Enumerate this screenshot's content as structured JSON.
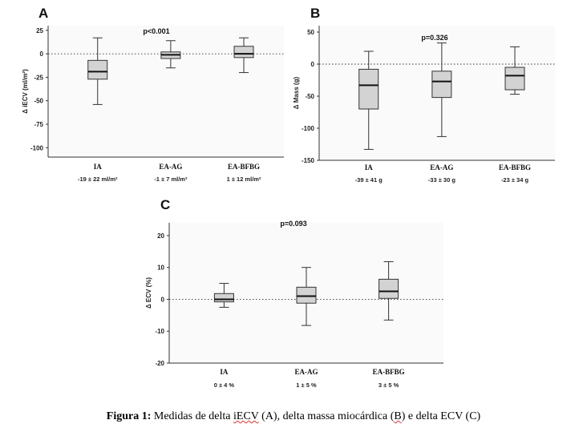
{
  "chart_data": [
    {
      "type": "box",
      "letter": "A",
      "p_value": "p<0.001",
      "ylabel": "Δ iECV (ml/m²)",
      "ylim": [
        -110,
        30
      ],
      "yticks": [
        25,
        0,
        -25,
        -50,
        -75,
        -100
      ],
      "reference_line": 0,
      "categories": [
        "IA",
        "EA-AG",
        "EA-BFBG"
      ],
      "stats_labels": [
        "-19 ± 22 ml/m²",
        "-1 ± 7 ml/m²",
        "1 ± 12 ml/m²"
      ],
      "boxes": [
        {
          "min": -54,
          "q1": -27,
          "median": -19,
          "q3": -7,
          "max": 17
        },
        {
          "min": -15,
          "q1": -5,
          "median": -1,
          "q3": 2,
          "max": 14
        },
        {
          "min": -20,
          "q1": -4,
          "median": 0,
          "q3": 8,
          "max": 17
        }
      ]
    },
    {
      "type": "box",
      "letter": "B",
      "p_value": "p=0.326",
      "ylabel": "Δ Mass (g)",
      "ylim": [
        -150,
        60
      ],
      "yticks": [
        50,
        0,
        -50,
        -100,
        -150
      ],
      "reference_line": 0,
      "categories": [
        "IA",
        "EA-AG",
        "EA-BFBG"
      ],
      "stats_labels": [
        "-39 ± 41 g",
        "-33 ± 30 g",
        "-23 ± 34 g"
      ],
      "boxes": [
        {
          "min": -133,
          "q1": -70,
          "median": -33,
          "q3": -8,
          "max": 20
        },
        {
          "min": -113,
          "q1": -52,
          "median": -27,
          "q3": -11,
          "max": 33
        },
        {
          "min": -47,
          "q1": -40,
          "median": -18,
          "q3": -5,
          "max": 27
        }
      ]
    },
    {
      "type": "box",
      "letter": "C",
      "p_value": "p=0.093",
      "ylabel": "Δ ECV (%)",
      "ylim": [
        -20,
        24
      ],
      "yticks": [
        20,
        10,
        0,
        -10,
        -20
      ],
      "reference_line": 0,
      "categories": [
        "IA",
        "EA-AG",
        "EA-BFBG"
      ],
      "stats_labels": [
        "0 ± 4 %",
        "1 ± 5 %",
        "3 ± 5 %"
      ],
      "boxes": [
        {
          "min": -2.5,
          "q1": -0.8,
          "median": 0,
          "q3": 1.8,
          "max": 5
        },
        {
          "min": -8.2,
          "q1": -1.2,
          "median": 1,
          "q3": 3.8,
          "max": 10
        },
        {
          "min": -6.5,
          "q1": 0.3,
          "median": 2.5,
          "q3": 6.3,
          "max": 11.8
        }
      ]
    }
  ],
  "caption": {
    "prefix": "Figura 1:",
    "part1": " Medidas de delta ",
    "term1": "iECV",
    "part2": " (A), delta massa miocárdica (",
    "term2": "B",
    "part3": ") e delta ECV (C)"
  }
}
